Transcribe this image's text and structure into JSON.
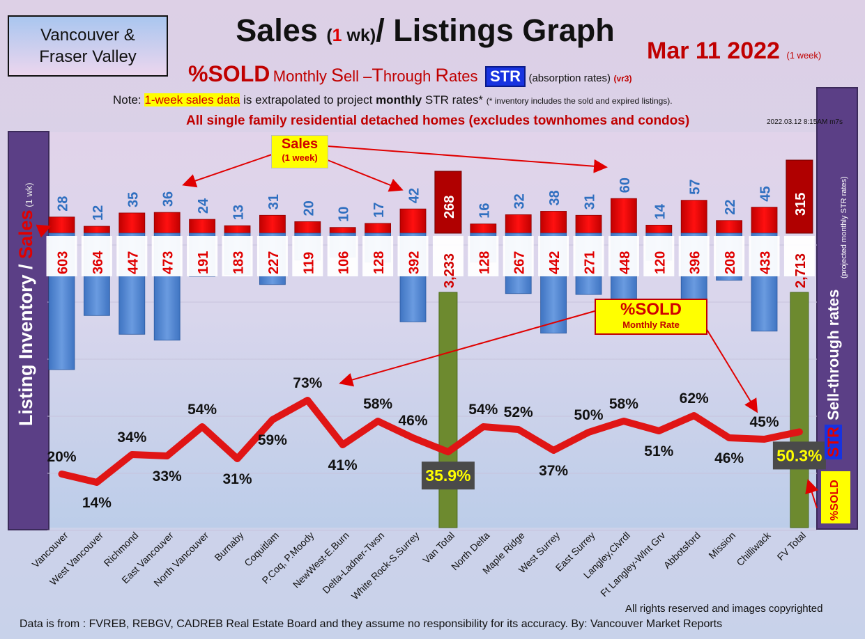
{
  "header": {
    "region_line1": "Vancouver &",
    "region_line2": "Fraser Valley",
    "title_a": "Sales ",
    "title_b": "(",
    "title_c": "1",
    "title_d": " wk)",
    "title_e": "/ Listings Graph",
    "date": "Mar  11  2022",
    "date_note": "(1 week)",
    "sub_sold": "%SOLD",
    "sub_m": "Monthly ",
    "sub_s1": "S",
    "sub_s2": "ell –",
    "sub_t1": "T",
    "sub_t2": "hrough ",
    "sub_r1": "R",
    "sub_r2": "ates",
    "sub_str": "STR",
    "sub_abs": "(absorption rates)",
    "sub_vr": "(vr3)",
    "note_a": "Note: ",
    "note_hl": "1-week sales data",
    "note_b": " is extrapolated to project ",
    "note_bold": "monthly",
    "note_c": " STR rates* ",
    "note_tiny": "(* inventory includes the sold and expired listings).",
    "scope": "All single family residential detached homes (excludes townhomes and condos)",
    "stamp": "2022.03.12 8:15AM m7s"
  },
  "side": {
    "left_a": "Listing Inventory ",
    "left_slash": "/ ",
    "left_sales": "Sales",
    "left_wk": " (1 wk)",
    "right_a": "Sell-through rates",
    "right_str": "STR",
    "right_sub": "(projected monthly STR rates)",
    "right_sold": "%SOLD"
  },
  "callouts": {
    "sales_t1": "Sales",
    "sales_t2": "(1 week)",
    "sold_t1": "%SOLD",
    "sold_t2": "Monthly Rate"
  },
  "footer": {
    "copyright": "All rights reserved and  images copyrighted",
    "source": "Data is from : FVREB, REBGV, CADREB Real Estate Board and they assume no responsibility for its accuracy. By: Vancouver Market Reports"
  },
  "chart_data": {
    "type": "bar",
    "categories": [
      "Vancouver",
      "West Vancouver",
      "Richmond",
      "East Vancouver",
      "North Vancouver",
      "Burnaby",
      "Coquitlam",
      "P.Coq, P.Moody",
      "NewWest-E.Burn",
      "Delta-Ladner-Twsn",
      "White Rock-S.Surrey",
      "Van Total",
      "North Delta",
      "Maple Ridge",
      "West Surrey",
      "East Surrey",
      "Langley,Clvrdl",
      "Ft Langley-Wlnt Grv",
      "Abbotsford",
      "Mission",
      "Chilliwack",
      "FV Total"
    ],
    "totals": [
      "Van Total",
      "FV Total"
    ],
    "series": [
      {
        "name": "Sales",
        "values": [
          28,
          12,
          35,
          36,
          24,
          13,
          31,
          20,
          10,
          17,
          42,
          268,
          16,
          32,
          38,
          31,
          60,
          14,
          57,
          22,
          45,
          315
        ]
      },
      {
        "name": "Listing Inventory",
        "values": [
          603,
          364,
          447,
          473,
          191,
          183,
          227,
          119,
          106,
          128,
          392,
          3233,
          128,
          267,
          442,
          271,
          448,
          120,
          396,
          208,
          433,
          2713
        ]
      },
      {
        "name": "%SOLD",
        "values": [
          20,
          14,
          34,
          33,
          54,
          31,
          59,
          73,
          41,
          58,
          46,
          35.9,
          54,
          52,
          37,
          50,
          58,
          51,
          62,
          46,
          45,
          50.3
        ]
      }
    ],
    "sales_labels": [
      "28",
      "12",
      "35",
      "36",
      "24",
      "13",
      "31",
      "20",
      "10",
      "17",
      "42",
      "268",
      "16",
      "32",
      "38",
      "31",
      "60",
      "14",
      "57",
      "22",
      "45",
      "315"
    ],
    "listing_labels": [
      "603",
      "364",
      "447",
      "473",
      "191",
      "183",
      "227",
      "119",
      "106",
      "128",
      "392",
      "3,233",
      "128",
      "267",
      "442",
      "271",
      "448",
      "120",
      "396",
      "208",
      "433",
      "2,713"
    ],
    "sold_labels": [
      "20%",
      "14%",
      "34%",
      "33%",
      "54%",
      "31%",
      "59%",
      "73%",
      "41%",
      "58%",
      "46%",
      "35.9%",
      "54%",
      "52%",
      "37%",
      "50%",
      "58%",
      "51%",
      "62%",
      "46%",
      "45%",
      "50.3%"
    ],
    "colors": {
      "sales": "#e00000",
      "listing": "#4a82cf",
      "total": "#6d8a2f",
      "line": "#e01515",
      "total_label": "#ffff00"
    }
  }
}
